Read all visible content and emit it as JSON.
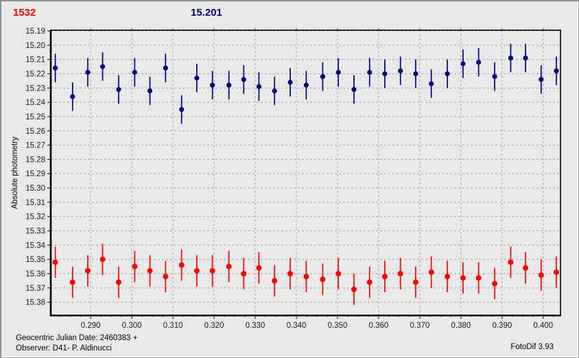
{
  "header": {
    "left_value": "1532",
    "left_color": "#ff0000",
    "center_value": "15.201",
    "center_color": "#000080"
  },
  "footer": {
    "line1": "Geocentric Julian Date: 2460383 +",
    "line2": "Observer: D41- P. Aldinucci",
    "app": "FotoDif 3.93"
  },
  "colors": {
    "background": "#e9e9e9",
    "grid": "#a2a2a2",
    "axis": "#000000",
    "tick_text": "#1a1a1a"
  },
  "chart_data": {
    "type": "scatter",
    "title": "",
    "xlabel": "",
    "ylabel": "Absolute photometry",
    "y_axis_inverted": true,
    "grid": "dashed",
    "legend": "none",
    "x_range": [
      0.2803,
      0.4042
    ],
    "y_range": [
      15.1895,
      15.3893
    ],
    "x_tick_labels": [
      "0.290",
      "0.300",
      "0.310",
      "0.320",
      "0.330",
      "0.340",
      "0.350",
      "0.360",
      "0.370",
      "0.380",
      "0.390",
      "0.400"
    ],
    "y_tick_labels": [
      "15.19",
      "15.20",
      "15.21",
      "15.22",
      "15.23",
      "15.24",
      "15.25",
      "15.26",
      "15.27",
      "15.28",
      "15.29",
      "15.30",
      "15.31",
      "15.32",
      "15.33",
      "15.34",
      "15.35",
      "15.36",
      "15.37",
      "15.38"
    ],
    "x_minor_tick_step": 0.0025,
    "x": [
      0.2814,
      0.2856,
      0.2893,
      0.2929,
      0.2968,
      0.3007,
      0.3044,
      0.3082,
      0.3121,
      0.3158,
      0.3196,
      0.3236,
      0.3272,
      0.3309,
      0.3347,
      0.3385,
      0.3424,
      0.3464,
      0.3502,
      0.354,
      0.3578,
      0.3615,
      0.3653,
      0.369,
      0.3728,
      0.3767,
      0.3805,
      0.3843,
      0.3882,
      0.3921,
      0.3957,
      0.3995,
      0.4032
    ],
    "series": [
      {
        "name": "target-asteroid-1532-blue",
        "color": "#000080",
        "marker": "circle",
        "marker_radius": 3.6,
        "err": 0.01,
        "y": [
          15.216,
          15.236,
          15.219,
          15.215,
          15.231,
          15.219,
          15.232,
          15.216,
          15.245,
          15.223,
          15.228,
          15.228,
          15.224,
          15.229,
          15.232,
          15.226,
          15.228,
          15.222,
          15.219,
          15.231,
          15.219,
          15.22,
          15.218,
          15.22,
          15.227,
          15.22,
          15.213,
          15.212,
          15.222,
          15.209,
          15.209,
          15.224,
          15.218
        ]
      },
      {
        "name": "comparison-star-red",
        "color": "#ff0000",
        "marker": "circle",
        "marker_radius": 4.0,
        "err": 0.011,
        "y": [
          15.352,
          15.366,
          15.358,
          15.35,
          15.366,
          15.355,
          15.358,
          15.362,
          15.354,
          15.358,
          15.358,
          15.355,
          15.36,
          15.356,
          15.365,
          15.36,
          15.362,
          15.364,
          15.36,
          15.371,
          15.366,
          15.362,
          15.36,
          15.366,
          15.359,
          15.362,
          15.363,
          15.363,
          15.367,
          15.352,
          15.356,
          15.361,
          15.359
        ]
      }
    ]
  }
}
